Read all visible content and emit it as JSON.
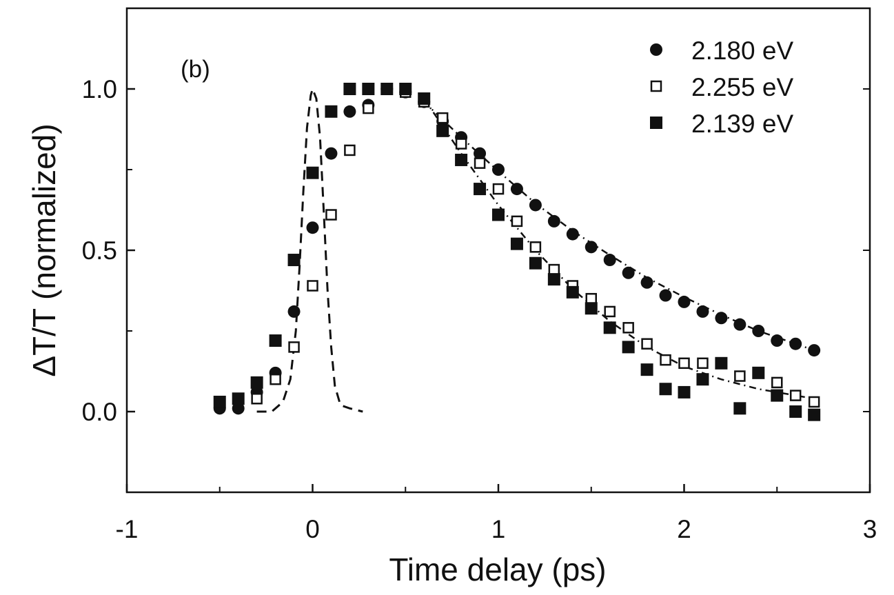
{
  "chart_data": {
    "type": "scatter",
    "panel_label": "(b)",
    "xlabel": "Time delay (ps)",
    "ylabel": "ΔT/T  (normalized)",
    "xlim": [
      -1,
      3
    ],
    "ylim": [
      -0.25,
      1.25
    ],
    "x_ticks": [
      -1,
      0,
      1,
      2,
      3
    ],
    "x_tick_labels": [
      "-1",
      "0",
      "1",
      "2",
      "3"
    ],
    "y_ticks": [
      0.0,
      0.5,
      1.0
    ],
    "y_tick_labels": [
      "0.0",
      "0.5",
      "1.0"
    ],
    "legend_position": "top-right",
    "series": [
      {
        "name": "2.180 eV",
        "marker": "filled-circle",
        "x": [
          -0.5,
          -0.4,
          -0.3,
          -0.2,
          -0.1,
          0.0,
          0.1,
          0.2,
          0.3,
          0.4,
          0.5,
          0.6,
          0.7,
          0.8,
          0.9,
          1.0,
          1.1,
          1.2,
          1.3,
          1.4,
          1.5,
          1.6,
          1.7,
          1.8,
          1.9,
          2.0,
          2.1,
          2.2,
          2.3,
          2.4,
          2.5,
          2.6,
          2.7
        ],
        "y": [
          0.01,
          0.01,
          0.06,
          0.12,
          0.31,
          0.57,
          0.8,
          0.93,
          0.95,
          1.0,
          0.99,
          0.96,
          0.9,
          0.85,
          0.8,
          0.75,
          0.69,
          0.64,
          0.59,
          0.55,
          0.51,
          0.47,
          0.43,
          0.4,
          0.36,
          0.34,
          0.31,
          0.29,
          0.27,
          0.25,
          0.22,
          0.21,
          0.19
        ]
      },
      {
        "name": "2.255 eV",
        "marker": "open-square",
        "x": [
          -0.3,
          -0.2,
          -0.1,
          0.0,
          0.1,
          0.2,
          0.3,
          0.4,
          0.5,
          0.6,
          0.7,
          0.8,
          0.9,
          1.0,
          1.1,
          1.2,
          1.3,
          1.4,
          1.5,
          1.6,
          1.7,
          1.8,
          1.9,
          2.0,
          2.1,
          2.3,
          2.5,
          2.6,
          2.7
        ],
        "y": [
          0.04,
          0.1,
          0.2,
          0.39,
          0.61,
          0.81,
          0.94,
          1.0,
          0.99,
          0.96,
          0.91,
          0.83,
          0.77,
          0.69,
          0.59,
          0.51,
          0.44,
          0.39,
          0.35,
          0.31,
          0.26,
          0.21,
          0.16,
          0.15,
          0.15,
          0.11,
          0.09,
          0.05,
          0.03
        ]
      },
      {
        "name": "2.139 eV",
        "marker": "filled-square",
        "x": [
          -0.5,
          -0.4,
          -0.3,
          -0.2,
          -0.1,
          0.0,
          0.1,
          0.2,
          0.3,
          0.4,
          0.5,
          0.6,
          0.7,
          0.8,
          0.9,
          1.0,
          1.1,
          1.2,
          1.3,
          1.4,
          1.5,
          1.6,
          1.7,
          1.8,
          1.9,
          2.0,
          2.1,
          2.2,
          2.3,
          2.4,
          2.5,
          2.6,
          2.7
        ],
        "y": [
          0.03,
          0.04,
          0.09,
          0.22,
          0.47,
          0.74,
          0.93,
          1.0,
          1.0,
          1.0,
          1.0,
          0.97,
          0.87,
          0.78,
          0.69,
          0.61,
          0.52,
          0.46,
          0.41,
          0.37,
          0.32,
          0.26,
          0.2,
          0.13,
          0.07,
          0.06,
          0.1,
          0.15,
          0.01,
          0.12,
          0.05,
          0.0,
          -0.01
        ]
      }
    ],
    "pulse_curve": {
      "style": "dashed",
      "x": [
        -0.3,
        -0.22,
        -0.16,
        -0.12,
        -0.09,
        -0.07,
        -0.05,
        -0.03,
        -0.01,
        0.0,
        0.02,
        0.04,
        0.06,
        0.08,
        0.1,
        0.12,
        0.15,
        0.2,
        0.27
      ],
      "y": [
        0.0,
        0.0,
        0.03,
        0.1,
        0.25,
        0.45,
        0.68,
        0.88,
        0.98,
        1.0,
        0.97,
        0.85,
        0.62,
        0.38,
        0.2,
        0.08,
        0.02,
        0.01,
        0.0
      ]
    },
    "fit_curves": [
      {
        "style": "dash-dot",
        "x": [
          0.6,
          0.8,
          1.0,
          1.2,
          1.4,
          1.6,
          1.8,
          2.0,
          2.2,
          2.4,
          2.6,
          2.7
        ],
        "y": [
          0.96,
          0.85,
          0.745,
          0.645,
          0.56,
          0.485,
          0.415,
          0.355,
          0.3,
          0.25,
          0.21,
          0.19
        ]
      },
      {
        "style": "dash-dot",
        "x": [
          0.6,
          0.8,
          1.0,
          1.2,
          1.4,
          1.6,
          1.8,
          2.0,
          2.2,
          2.4,
          2.6,
          2.7
        ],
        "y": [
          0.97,
          0.8,
          0.64,
          0.5,
          0.38,
          0.28,
          0.2,
          0.14,
          0.1,
          0.07,
          0.05,
          0.04
        ]
      }
    ]
  }
}
